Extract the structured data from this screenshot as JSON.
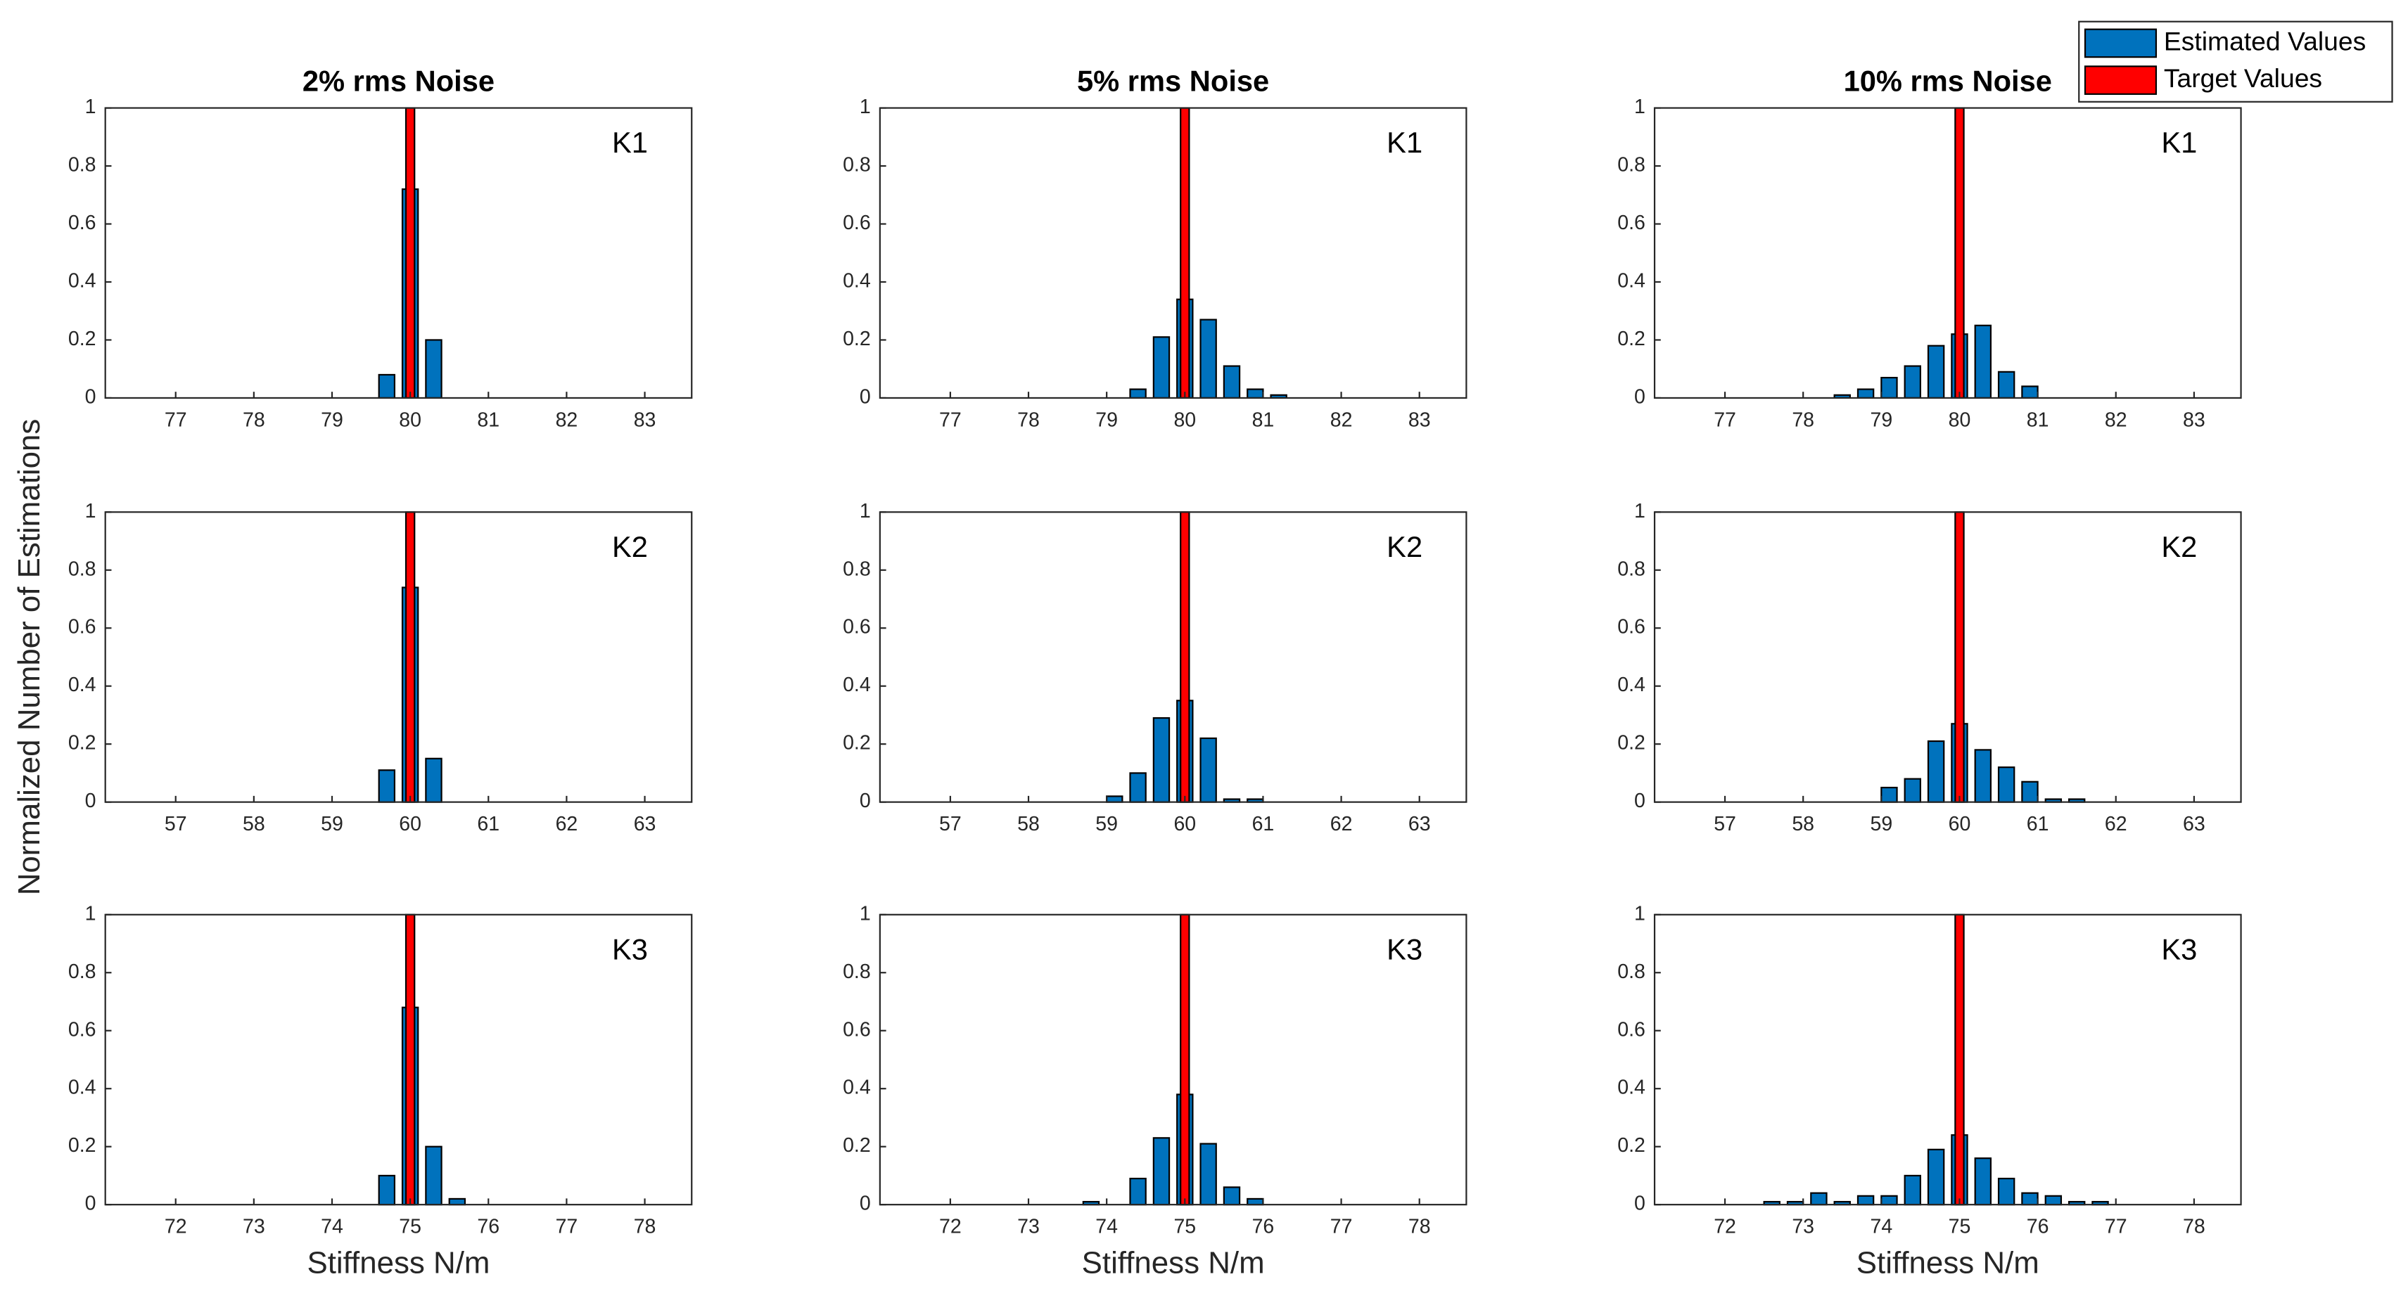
{
  "chart_data": [
    {
      "type": "bar",
      "title": "2% rms Noise",
      "label": "K1",
      "xlim": [
        76.1,
        83.6
      ],
      "xticks": [
        77,
        78,
        79,
        80,
        81,
        82,
        83
      ],
      "ylim": [
        0,
        1
      ],
      "yticks": [
        0,
        0.2,
        0.4,
        0.6,
        0.8,
        1
      ],
      "series": [
        {
          "color": "#0072bd",
          "x": [
            79.7,
            80.0,
            80.3
          ],
          "values": [
            0.08,
            0.72,
            0.2
          ]
        },
        {
          "color": "#ff0000",
          "x": [
            80
          ],
          "values": [
            1
          ]
        }
      ]
    },
    {
      "type": "bar",
      "title": "5% rms Noise",
      "label": "K1",
      "xlim": [
        76.1,
        83.6
      ],
      "xticks": [
        77,
        78,
        79,
        80,
        81,
        82,
        83
      ],
      "ylim": [
        0,
        1
      ],
      "yticks": [
        0,
        0.2,
        0.4,
        0.6,
        0.8,
        1
      ],
      "series": [
        {
          "color": "#0072bd",
          "x": [
            79.4,
            79.7,
            80.0,
            80.3,
            80.6,
            80.9,
            81.2
          ],
          "values": [
            0.03,
            0.21,
            0.34,
            0.27,
            0.11,
            0.03,
            0.01
          ]
        },
        {
          "color": "#ff0000",
          "x": [
            80
          ],
          "values": [
            1
          ]
        }
      ]
    },
    {
      "type": "bar",
      "title": "10% rms Noise",
      "label": "K1",
      "xlim": [
        76.1,
        83.6
      ],
      "xticks": [
        77,
        78,
        79,
        80,
        81,
        82,
        83
      ],
      "ylim": [
        0,
        1
      ],
      "yticks": [
        0,
        0.2,
        0.4,
        0.6,
        0.8,
        1
      ],
      "series": [
        {
          "name": "Estimated Values",
          "color": "#0072bd",
          "x": [
            78.5,
            78.8,
            79.1,
            79.4,
            79.7,
            80.0,
            80.3,
            80.6,
            80.9
          ],
          "values": [
            0.01,
            0.03,
            0.07,
            0.11,
            0.18,
            0.22,
            0.25,
            0.09,
            0.04
          ]
        },
        {
          "name": "Target Values",
          "color": "#ff0000",
          "x": [
            80
          ],
          "values": [
            1
          ]
        }
      ]
    },
    {
      "type": "bar",
      "label": "K2",
      "ylabel": "Normalized Number of Estimations",
      "xlim": [
        56.1,
        63.6
      ],
      "xticks": [
        57,
        58,
        59,
        60,
        61,
        62,
        63
      ],
      "ylim": [
        0,
        1
      ],
      "yticks": [
        0,
        0.2,
        0.4,
        0.6,
        0.8,
        1
      ],
      "series": [
        {
          "color": "#0072bd",
          "x": [
            59.7,
            60.0,
            60.3
          ],
          "values": [
            0.11,
            0.74,
            0.15
          ]
        },
        {
          "color": "#ff0000",
          "x": [
            60
          ],
          "values": [
            1
          ]
        }
      ]
    },
    {
      "type": "bar",
      "label": "K2",
      "xlim": [
        56.1,
        63.6
      ],
      "xticks": [
        57,
        58,
        59,
        60,
        61,
        62,
        63
      ],
      "ylim": [
        0,
        1
      ],
      "yticks": [
        0,
        0.2,
        0.4,
        0.6,
        0.8,
        1
      ],
      "series": [
        {
          "color": "#0072bd",
          "x": [
            59.1,
            59.4,
            59.7,
            60.0,
            60.3,
            60.6,
            60.9
          ],
          "values": [
            0.02,
            0.1,
            0.29,
            0.35,
            0.22,
            0.01,
            0.01
          ]
        },
        {
          "color": "#ff0000",
          "x": [
            60
          ],
          "values": [
            1
          ]
        }
      ]
    },
    {
      "type": "bar",
      "label": "K2",
      "xlim": [
        56.1,
        63.6
      ],
      "xticks": [
        57,
        58,
        59,
        60,
        61,
        62,
        63
      ],
      "ylim": [
        0,
        1
      ],
      "yticks": [
        0,
        0.2,
        0.4,
        0.6,
        0.8,
        1
      ],
      "series": [
        {
          "color": "#0072bd",
          "x": [
            59.1,
            59.4,
            59.7,
            60.0,
            60.3,
            60.6,
            60.9,
            61.2,
            61.5
          ],
          "values": [
            0.05,
            0.08,
            0.21,
            0.27,
            0.18,
            0.12,
            0.07,
            0.01,
            0.01
          ]
        },
        {
          "color": "#ff0000",
          "x": [
            60
          ],
          "values": [
            1
          ]
        }
      ]
    },
    {
      "type": "bar",
      "label": "K3",
      "xlabel": "Stiffness N/m",
      "xlim": [
        71.1,
        78.6
      ],
      "xticks": [
        72,
        73,
        74,
        75,
        76,
        77,
        78
      ],
      "ylim": [
        0,
        1
      ],
      "yticks": [
        0,
        0.2,
        0.4,
        0.6,
        0.8,
        1
      ],
      "series": [
        {
          "color": "#0072bd",
          "x": [
            74.7,
            75.0,
            75.3,
            75.6
          ],
          "values": [
            0.1,
            0.68,
            0.2,
            0.02
          ]
        },
        {
          "color": "#ff0000",
          "x": [
            75
          ],
          "values": [
            1
          ]
        }
      ]
    },
    {
      "type": "bar",
      "label": "K3",
      "xlabel": "Stiffness N/m",
      "xlim": [
        71.1,
        78.6
      ],
      "xticks": [
        72,
        73,
        74,
        75,
        76,
        77,
        78
      ],
      "ylim": [
        0,
        1
      ],
      "yticks": [
        0,
        0.2,
        0.4,
        0.6,
        0.8,
        1
      ],
      "series": [
        {
          "color": "#0072bd",
          "x": [
            73.8,
            74.4,
            74.7,
            75.0,
            75.3,
            75.6,
            75.9
          ],
          "values": [
            0.01,
            0.09,
            0.23,
            0.38,
            0.21,
            0.06,
            0.02
          ]
        },
        {
          "color": "#ff0000",
          "x": [
            75
          ],
          "values": [
            1
          ]
        }
      ]
    },
    {
      "type": "bar",
      "label": "K3",
      "xlabel": "Stiffness N/m",
      "xlim": [
        71.1,
        78.6
      ],
      "xticks": [
        72,
        73,
        74,
        75,
        76,
        77,
        78
      ],
      "ylim": [
        0,
        1
      ],
      "yticks": [
        0,
        0.2,
        0.4,
        0.6,
        0.8,
        1
      ],
      "series": [
        {
          "color": "#0072bd",
          "x": [
            72.6,
            72.9,
            73.2,
            73.5,
            73.8,
            74.1,
            74.4,
            74.7,
            75.0,
            75.3,
            75.6,
            75.9,
            76.2,
            76.5,
            76.8
          ],
          "values": [
            0.01,
            0.01,
            0.04,
            0.01,
            0.03,
            0.03,
            0.1,
            0.19,
            0.24,
            0.16,
            0.09,
            0.04,
            0.03,
            0.01,
            0.01
          ]
        },
        {
          "color": "#ff0000",
          "x": [
            75
          ],
          "values": [
            1
          ]
        }
      ]
    }
  ]
}
